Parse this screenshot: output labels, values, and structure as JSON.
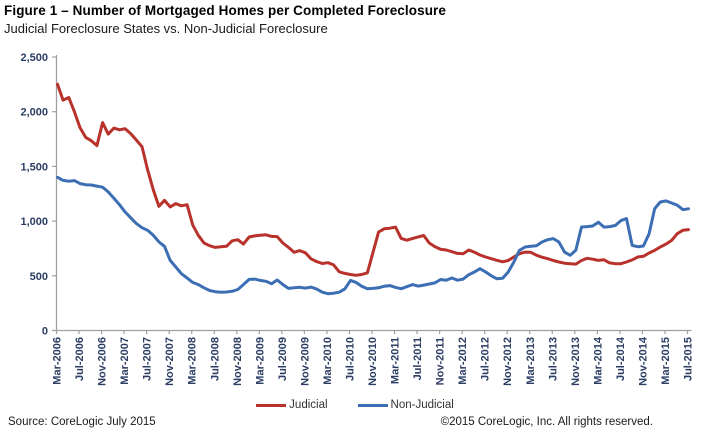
{
  "header": {
    "title": "Figure 1 – Number of Mortgaged Homes per Completed Foreclosure",
    "subtitle": "Judicial Foreclosure States vs. Non-Judicial Foreclosure"
  },
  "chart_data": {
    "type": "line",
    "title": "Figure 1 – Number of Mortgaged Homes per Completed Foreclosure",
    "subtitle": "Judicial Foreclosure States vs. Non-Judicial Foreclosure",
    "x_frequency": "monthly",
    "x_start": "Mar-2006",
    "x_end": "Jul-2015",
    "x_tick_labels": [
      "Mar-2006",
      "Jul-2006",
      "Nov-2006",
      "Mar-2007",
      "Jul-2007",
      "Nov-2007",
      "Mar-2008",
      "Jul-2008",
      "Nov-2008",
      "Mar-2009",
      "Jul-2009",
      "Nov-2009",
      "Mar-2010",
      "Jul-2010",
      "Nov-2010",
      "Mar-2011",
      "Jul-2011",
      "Nov-2011",
      "Mar-2012",
      "Jul-2012",
      "Nov-2012",
      "Mar-2013",
      "Jul-2013",
      "Nov-2013",
      "Mar-2014",
      "Jul-2014",
      "Nov-2014",
      "Mar-2015",
      "Jul-2015"
    ],
    "x_tick_every_n_months": 4,
    "ylim": [
      0,
      2500
    ],
    "y_ticks": [
      0,
      500,
      1000,
      1500,
      2000,
      2500
    ],
    "y_tick_labels": [
      "0",
      "500",
      "1,000",
      "1,500",
      "2,000",
      "2,500"
    ],
    "grid": false,
    "legend_position": "bottom",
    "axis_color": "#a0a0a0",
    "series": [
      {
        "name": "Judicial",
        "color": "#b8322b",
        "values": [
          2250,
          2105,
          2130,
          2000,
          1855,
          1765,
          1735,
          1690,
          1900,
          1795,
          1850,
          1835,
          1845,
          1800,
          1740,
          1680,
          1470,
          1285,
          1135,
          1190,
          1130,
          1160,
          1140,
          1150,
          965,
          870,
          800,
          775,
          760,
          765,
          770,
          820,
          830,
          790,
          855,
          865,
          870,
          875,
          860,
          858,
          800,
          760,
          715,
          730,
          710,
          655,
          630,
          612,
          620,
          600,
          537,
          522,
          512,
          505,
          512,
          527,
          715,
          900,
          930,
          935,
          945,
          842,
          825,
          840,
          856,
          868,
          800,
          765,
          742,
          736,
          720,
          705,
          702,
          736,
          716,
          690,
          672,
          656,
          642,
          628,
          640,
          672,
          702,
          717,
          715,
          688,
          670,
          656,
          640,
          626,
          615,
          611,
          607,
          640,
          660,
          652,
          641,
          646,
          618,
          611,
          611,
          626,
          645,
          672,
          678,
          708,
          733,
          763,
          790,
          824,
          885,
          916,
          922
        ]
      },
      {
        "name": "Non-Judicial",
        "color": "#3c6eb4",
        "values": [
          1400,
          1372,
          1365,
          1370,
          1343,
          1333,
          1330,
          1320,
          1310,
          1267,
          1210,
          1150,
          1083,
          1030,
          977,
          940,
          916,
          870,
          810,
          770,
          641,
          580,
          519,
          480,
          440,
          420,
          390,
          366,
          355,
          350,
          352,
          358,
          375,
          420,
          467,
          470,
          458,
          450,
          428,
          462,
          420,
          385,
          390,
          395,
          388,
          397,
          378,
          350,
          336,
          341,
          350,
          380,
          458,
          440,
          405,
          382,
          385,
          390,
          405,
          410,
          394,
          382,
          400,
          420,
          406,
          415,
          425,
          435,
          466,
          460,
          480,
          460,
          470,
          510,
          535,
          565,
          535,
          500,
          473,
          478,
          535,
          625,
          733,
          763,
          770,
          775,
          809,
          830,
          840,
          809,
          717,
          687,
          733,
          946,
          950,
          955,
          990,
          945,
          950,
          960,
          1005,
          1023,
          778,
          766,
          772,
          885,
          1114,
          1175,
          1185,
          1165,
          1145,
          1105,
          1112
        ]
      }
    ]
  },
  "footer": {
    "source": "Source: CoreLogic  July 2015",
    "copyright": "©2015 CoreLogic, Inc.  All rights reserved."
  }
}
